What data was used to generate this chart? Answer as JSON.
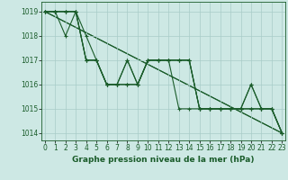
{
  "title": "Graphe pression niveau de la mer (hPa)",
  "bg_color": "#cde8e4",
  "plot_bg_color": "#cde8e4",
  "grid_color": "#a8ccc8",
  "line_color": "#1a5c2a",
  "ylim": [
    1013.7,
    1019.4
  ],
  "xlim": [
    -0.3,
    23.3
  ],
  "yticks": [
    1014,
    1015,
    1016,
    1017,
    1018,
    1019
  ],
  "xticks": [
    0,
    1,
    2,
    3,
    4,
    5,
    6,
    7,
    8,
    9,
    10,
    11,
    12,
    13,
    14,
    15,
    16,
    17,
    18,
    19,
    20,
    21,
    22,
    23
  ],
  "series": [
    [
      1019,
      1019,
      1019,
      1019,
      1018,
      1017,
      1016,
      1016,
      1017,
      1016,
      1017,
      1017,
      1017,
      1017,
      1017,
      1015,
      1015,
      1015,
      1015,
      1015,
      1015,
      1015,
      1015,
      1014
    ],
    [
      1019,
      1019,
      1019,
      1019,
      1017,
      1017,
      1016,
      1016,
      1016,
      1016,
      1017,
      1017,
      1017,
      1017,
      1017,
      1015,
      1015,
      1015,
      1015,
      1015,
      1015,
      1015,
      1015,
      1014
    ],
    [
      1019,
      1019,
      1019,
      1019,
      1017,
      1017,
      1016,
      1016,
      1017,
      1016,
      1017,
      1017,
      1017,
      1017,
      1017,
      1015,
      1015,
      1015,
      1015,
      1015,
      1016,
      1015,
      1015,
      1014
    ],
    [
      1019,
      1019,
      1018,
      1019,
      1017,
      1017,
      1016,
      1016,
      1016,
      1016,
      1017,
      1017,
      1017,
      1015,
      1015,
      1015,
      1015,
      1015,
      1015,
      1015,
      1016,
      1015,
      1015,
      1014
    ]
  ],
  "straight_lines": [
    [
      [
        0,
        1019
      ],
      [
        23,
        1014
      ]
    ],
    [
      [
        0,
        1019
      ],
      [
        23,
        1014
      ]
    ]
  ],
  "tick_fontsize": 5.5,
  "title_fontsize": 6.5,
  "marker": "+",
  "markersize": 3,
  "markeredgewidth": 0.8,
  "linewidth": 0.8
}
